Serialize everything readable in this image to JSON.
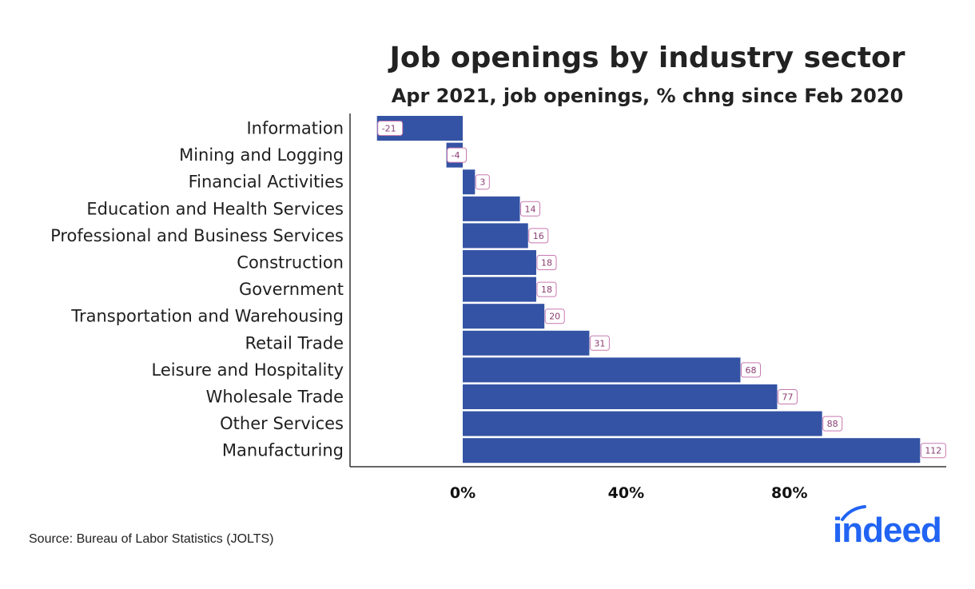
{
  "chart_data": {
    "type": "bar",
    "orientation": "horizontal",
    "title": "Job openings by industry sector",
    "subtitle": "Apr 2021, job openings, % chng since Feb 2020",
    "categories": [
      "Information",
      "Mining and Logging",
      "Financial Activities",
      "Education and Health Services",
      "Professional and Business Services",
      "Construction",
      "Government",
      "Transportation and Warehousing",
      "Retail Trade",
      "Leisure and Hospitality",
      "Wholesale Trade",
      "Other Services",
      "Manufacturing"
    ],
    "values": [
      -21,
      -4,
      3,
      14,
      16,
      18,
      18,
      20,
      31,
      68,
      77,
      88,
      112
    ],
    "data_labels": [
      "-21",
      "-4",
      "3",
      "14",
      "16",
      "18",
      "18",
      "20",
      "31",
      "68",
      "77",
      "88",
      "112"
    ],
    "x_ticks": [
      0,
      40,
      80
    ],
    "x_tick_labels": [
      "0%",
      "40%",
      "80%"
    ],
    "xlim": [
      -27,
      118
    ],
    "grid": false,
    "bar_color": "#3453a4",
    "label_color": "#8a3d73"
  },
  "footer": {
    "source": "Source: Bureau of Labor Statistics (JOLTS)"
  },
  "logo": {
    "text": "indeed",
    "color": "#2164f3"
  }
}
